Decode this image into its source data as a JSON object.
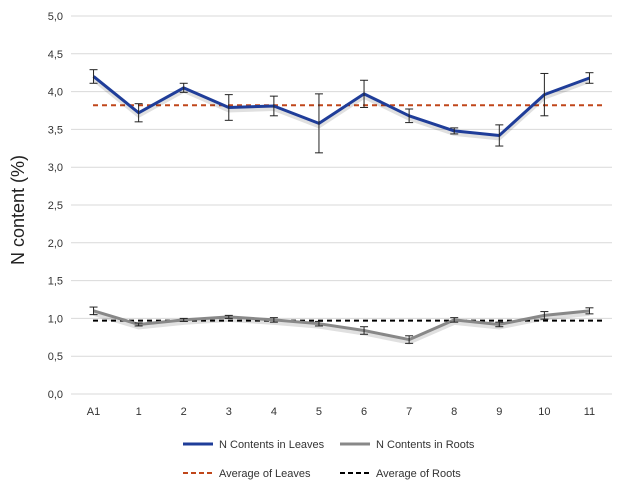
{
  "chart_data": {
    "type": "line",
    "title": "",
    "xlabel": "",
    "ylabel": "N content (%)",
    "ylim": [
      0,
      5
    ],
    "yticks": [
      "0,0",
      "0,5",
      "1,0",
      "1,5",
      "2,0",
      "2,5",
      "3,0",
      "3,5",
      "4,0",
      "4,5",
      "5,0"
    ],
    "ytick_values": [
      0,
      0.5,
      1,
      1.5,
      2,
      2.5,
      3,
      3.5,
      4,
      4.5,
      5
    ],
    "categories": [
      "A1",
      "1",
      "2",
      "3",
      "4",
      "5",
      "6",
      "7",
      "8",
      "9",
      "10",
      "11"
    ],
    "grid": "horizontal",
    "legend_position": "bottom",
    "series": [
      {
        "name": "N Contents in Leaves",
        "color": "#1f3d99",
        "values": [
          4.2,
          3.72,
          4.05,
          3.79,
          3.81,
          3.58,
          3.97,
          3.68,
          3.48,
          3.42,
          3.96,
          4.18
        ],
        "errors": [
          0.09,
          0.12,
          0.06,
          0.17,
          0.13,
          0.39,
          0.18,
          0.09,
          0.04,
          0.14,
          0.28,
          0.07
        ]
      },
      {
        "name": "N Contents in Roots",
        "color": "#888888",
        "values": [
          1.1,
          0.92,
          0.98,
          1.02,
          0.98,
          0.93,
          0.84,
          0.72,
          0.98,
          0.92,
          1.04,
          1.1
        ],
        "errors": [
          0.05,
          0.02,
          0.02,
          0.02,
          0.03,
          0.03,
          0.05,
          0.05,
          0.03,
          0.03,
          0.05,
          0.04
        ]
      }
    ],
    "reference_lines": [
      {
        "name": "Average of Leaves",
        "value": 3.82,
        "color": "#c0461a"
      },
      {
        "name": "Average of Roots",
        "value": 0.97,
        "color": "#000000"
      }
    ]
  }
}
